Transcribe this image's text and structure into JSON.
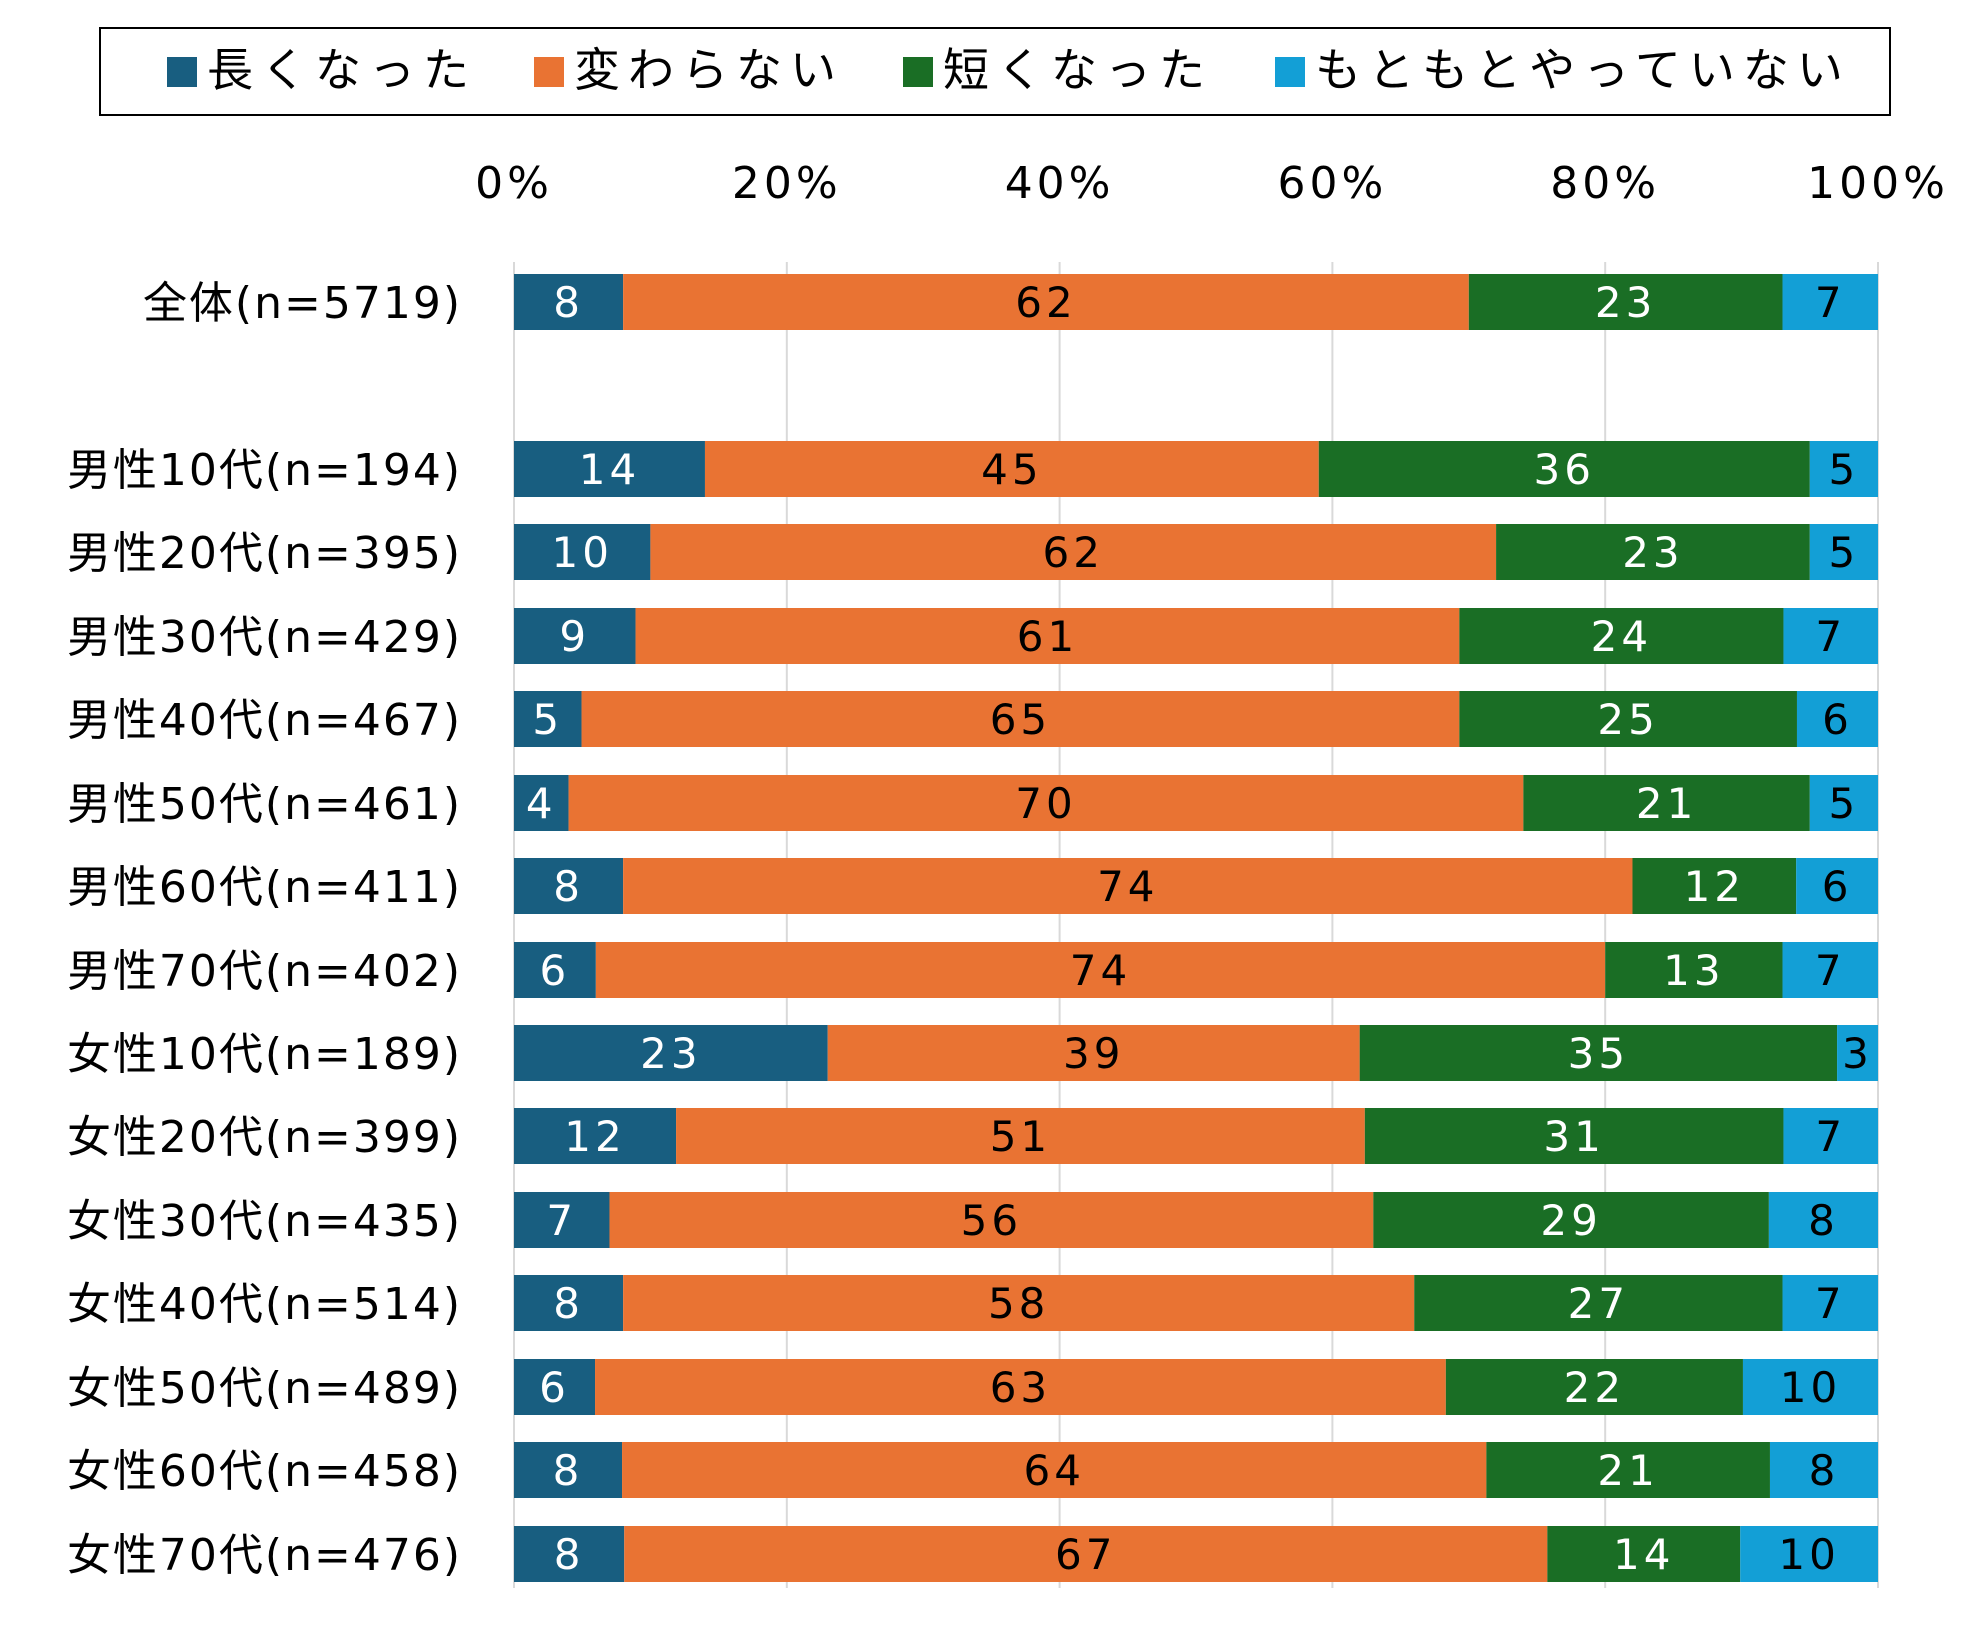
{
  "chart_data": {
    "type": "bar",
    "orientation": "horizontal",
    "stacked": "percent",
    "title": "",
    "xlabel": "",
    "ylabel": "",
    "xlim": [
      0,
      100
    ],
    "x_ticks": [
      "0%",
      "20%",
      "40%",
      "60%",
      "80%",
      "100%"
    ],
    "grid": true,
    "legend_position": "top",
    "categories": [
      "全体(n=5719)",
      "男性10代(n=194)",
      "男性20代(n=395)",
      "男性30代(n=429)",
      "男性40代(n=467)",
      "男性50代(n=461)",
      "男性60代(n=411)",
      "男性70代(n=402)",
      "女性10代(n=189)",
      "女性20代(n=399)",
      "女性30代(n=435)",
      "女性40代(n=514)",
      "女性50代(n=489)",
      "女性60代(n=458)",
      "女性70代(n=476)"
    ],
    "series": [
      {
        "name": "長くなった",
        "color": "#185e80",
        "values": [
          8,
          14,
          10,
          9,
          5,
          4,
          8,
          6,
          23,
          12,
          7,
          8,
          6,
          8,
          8
        ]
      },
      {
        "name": "変わらない",
        "color": "#e97333",
        "values": [
          62,
          45,
          62,
          61,
          65,
          70,
          74,
          74,
          39,
          51,
          56,
          58,
          63,
          64,
          67
        ]
      },
      {
        "name": "短くなった",
        "color": "#1a6e25",
        "values": [
          23,
          36,
          23,
          24,
          25,
          21,
          12,
          13,
          35,
          31,
          29,
          27,
          22,
          21,
          14
        ]
      },
      {
        "name": "もともとやっていない",
        "color": "#139fd6",
        "values": [
          7,
          5,
          5,
          7,
          6,
          5,
          6,
          7,
          3,
          7,
          8,
          7,
          10,
          8,
          10
        ]
      }
    ],
    "label_colors": [
      "#ffffff",
      "#000000",
      "#ffffff",
      "#000000"
    ]
  }
}
